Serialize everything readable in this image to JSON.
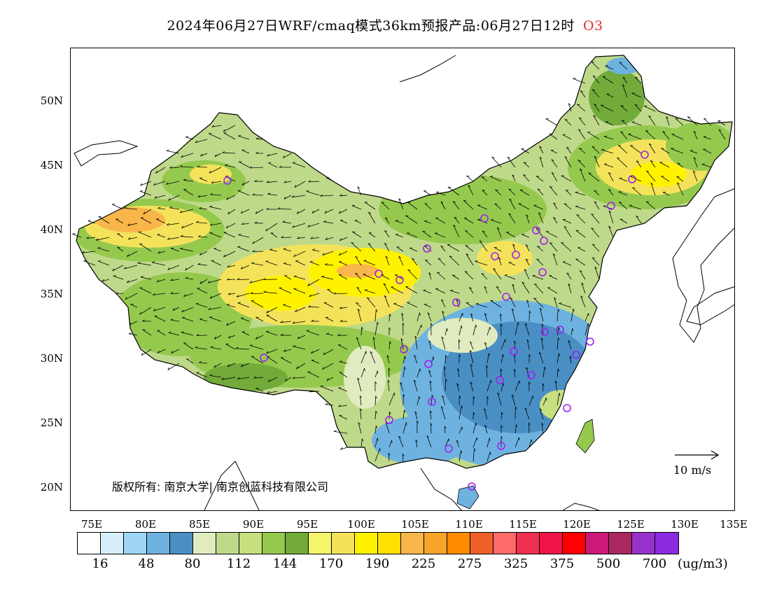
{
  "title": {
    "main": "2024年06月27日WRF/cmaq模式36km预报产品:06月27日12时",
    "product": "O3"
  },
  "map": {
    "lat_labels": [
      "50N",
      "45N",
      "40N",
      "35N",
      "30N",
      "25N",
      "20N"
    ],
    "lon_labels": [
      "75E",
      "80E",
      "85E",
      "90E",
      "95E",
      "100E",
      "105E",
      "110E",
      "115E",
      "120E",
      "125E",
      "130E",
      "135E"
    ],
    "copyright": "版权所有: 南京大学| 南京创蓝科技有限公司",
    "wind_scale": "10 m/s",
    "station_color": "#a020f0"
  },
  "legend": {
    "colors": [
      "#ffffff",
      "#d7effc",
      "#9fd6f5",
      "#6eb3e0",
      "#4a8fc4",
      "#e0ecc0",
      "#bfd98a",
      "#c6e080",
      "#95c94e",
      "#72ab3a",
      "#f4f56a",
      "#f4e35a",
      "#fff200",
      "#ffe000",
      "#f9b64a",
      "#f8a32a",
      "#ff8c00",
      "#f06028",
      "#ff6a6a",
      "#f03050",
      "#f01448",
      "#ff0000",
      "#cc1878",
      "#aa2860",
      "#9932cc",
      "#8a2be2"
    ],
    "labels": [
      "16",
      "48",
      "80",
      "112",
      "144",
      "170",
      "190",
      "225",
      "275",
      "325",
      "375",
      "500",
      "700"
    ],
    "unit": "(ug/m3)"
  }
}
